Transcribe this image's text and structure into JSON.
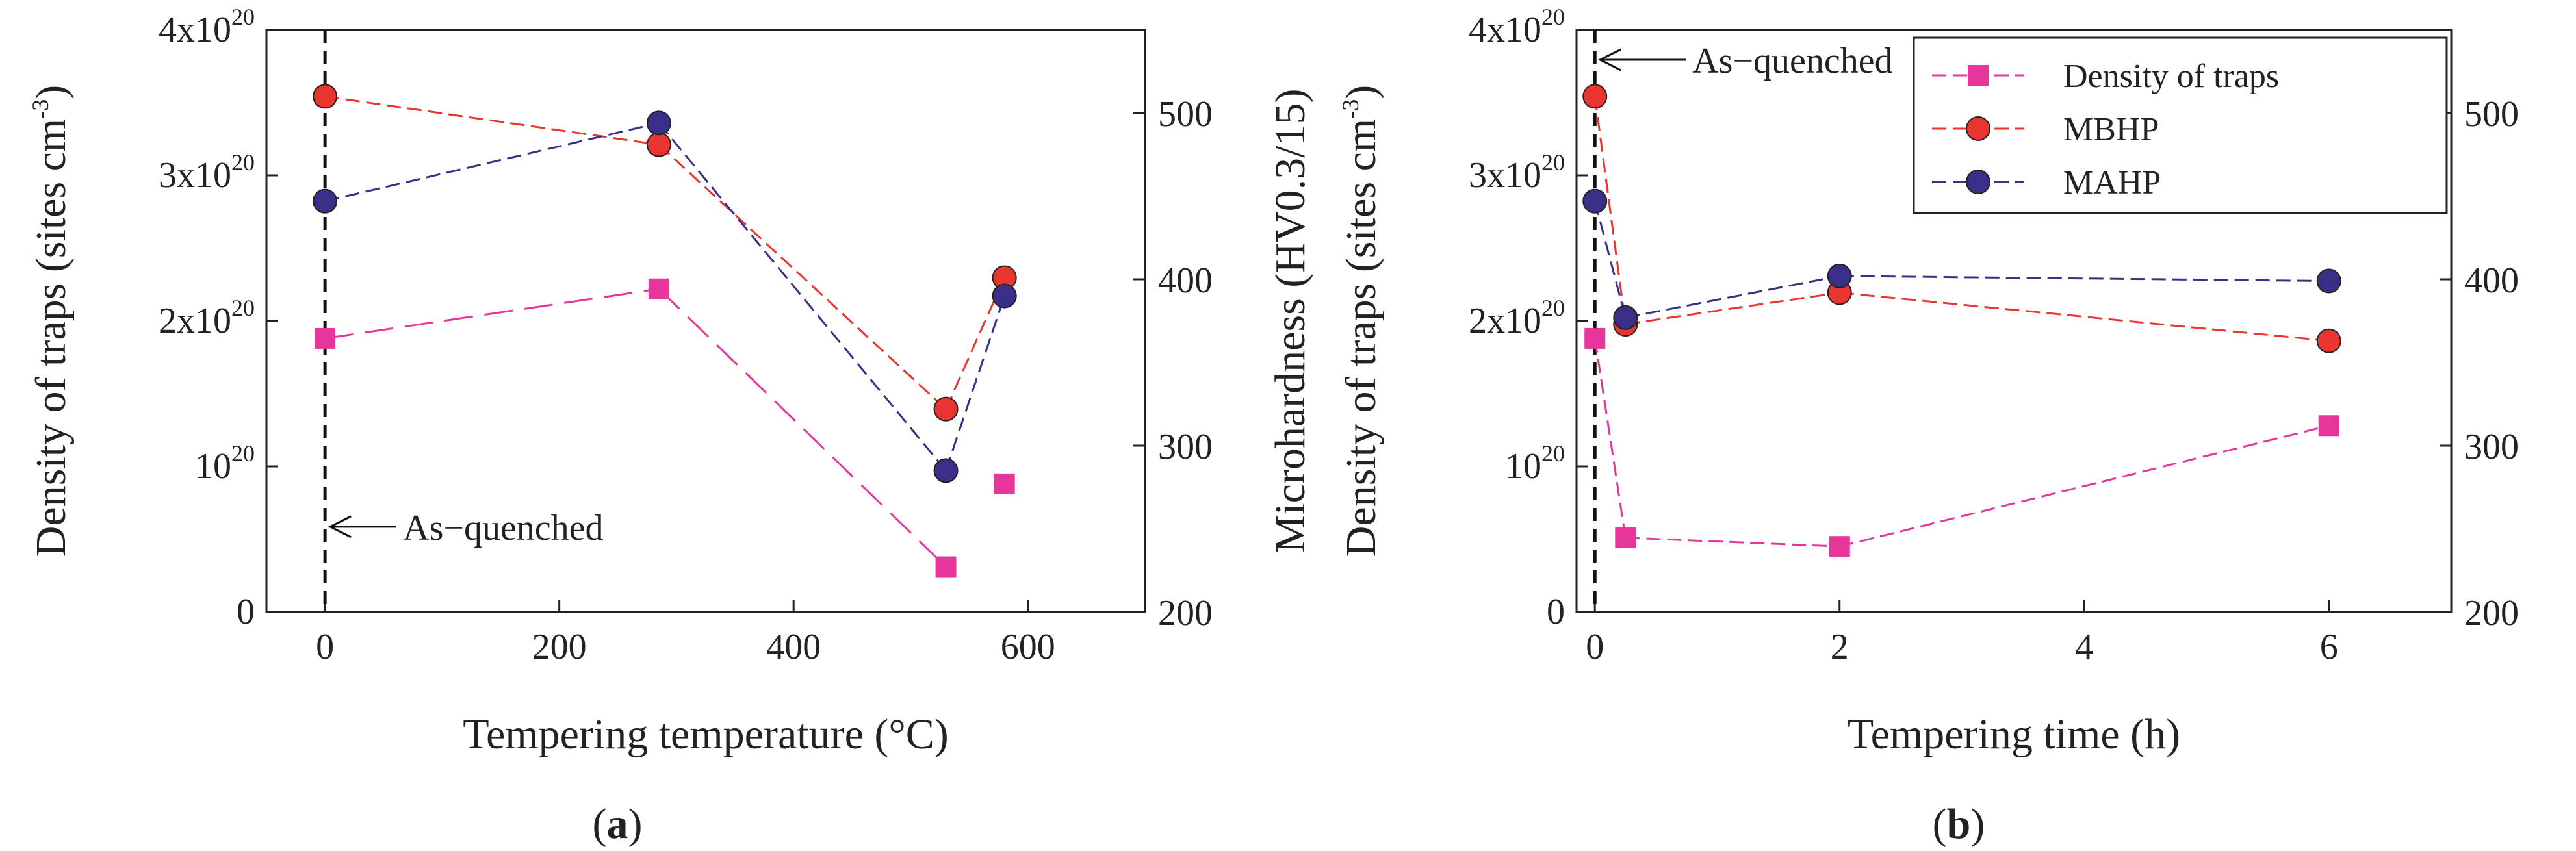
{
  "chart_data": [
    {
      "type": "line",
      "panel_label": "a",
      "xlabel": "Tempering temperature (°C)",
      "ylabel": "Density of traps (sites cm",
      "ylabel_sup": "-3",
      "ylabel_close": ")",
      "y2label": "Microhardness (HV0.3/15)",
      "xlim": [
        -50,
        700
      ],
      "xticks": [
        "0",
        "200",
        "400",
        "600"
      ],
      "xtick_values": [
        0,
        200,
        400,
        600
      ],
      "ylim": [
        0,
        4e+20
      ],
      "yticks": [
        {
          "base": "0",
          "sup": ""
        },
        {
          "base": "10",
          "sup": "20"
        },
        {
          "base": "2x10",
          "sup": "20"
        },
        {
          "base": "3x10",
          "sup": "20"
        },
        {
          "base": "4x10",
          "sup": "20"
        }
      ],
      "ytick_values": [
        0,
        1e+20,
        2e+20,
        3e+20,
        4e+20
      ],
      "y2lim": [
        200,
        550
      ],
      "y2ticks": [
        "200",
        "300",
        "400",
        "500"
      ],
      "y2tick_values": [
        200,
        300,
        400,
        500
      ],
      "vline_x": 0,
      "annotation": "As−quenched",
      "series": [
        {
          "name": "Density of traps",
          "axis": "left",
          "color": "#e6369b",
          "marker": "square",
          "dash": "long",
          "x": [
            0,
            285,
            530,
            580
          ],
          "y": [
            1.88e+20,
            2.22e+20,
            3.1e+19,
            8.8e+19
          ],
          "segments": [
            [
              0,
              1
            ],
            [
              1,
              2
            ]
          ]
        },
        {
          "name": "MBHP",
          "axis": "right",
          "color": "#e8352f",
          "marker": "circle",
          "dash": "short",
          "x": [
            0,
            285,
            530,
            580
          ],
          "y": [
            510,
            481,
            322,
            401
          ],
          "segments": [
            [
              0,
              1
            ],
            [
              1,
              2
            ],
            [
              2,
              3
            ]
          ]
        },
        {
          "name": "MAHP",
          "axis": "right",
          "color": "#3a2f86",
          "marker": "circle",
          "dash": "short",
          "x": [
            0,
            285,
            530,
            580
          ],
          "y": [
            447,
            494,
            285,
            390
          ],
          "segments": [
            [
              0,
              1
            ],
            [
              1,
              2
            ],
            [
              2,
              3
            ]
          ]
        }
      ]
    },
    {
      "type": "line",
      "panel_label": "b",
      "xlabel": "Tempering time (h)",
      "ylabel": "Density of traps (sites cm",
      "ylabel_sup": "-3",
      "ylabel_close": ")",
      "y2label": "Microhardness (HV0.3/15)",
      "xlim": [
        -0.15,
        7
      ],
      "xticks": [
        "0",
        "2",
        "4",
        "6"
      ],
      "xtick_values": [
        0,
        2,
        4,
        6
      ],
      "ylim": [
        0,
        4e+20
      ],
      "yticks": [
        {
          "base": "0",
          "sup": ""
        },
        {
          "base": "10",
          "sup": "20"
        },
        {
          "base": "2x10",
          "sup": "20"
        },
        {
          "base": "3x10",
          "sup": "20"
        },
        {
          "base": "4x10",
          "sup": "20"
        }
      ],
      "ytick_values": [
        0,
        1e+20,
        2e+20,
        3e+20,
        4e+20
      ],
      "y2lim": [
        200,
        550
      ],
      "y2ticks": [
        "200",
        "300",
        "400",
        "500"
      ],
      "y2tick_values": [
        200,
        300,
        400,
        500
      ],
      "vline_x": 0,
      "annotation": "As−quenched",
      "legend": [
        "Density of traps",
        "MBHP",
        "MAHP"
      ],
      "series": [
        {
          "name": "Density of traps",
          "axis": "left",
          "color": "#e6369b",
          "marker": "square",
          "dash": "short",
          "x": [
            0,
            0.25,
            2,
            6
          ],
          "y": [
            1.88e+20,
            5.1e+19,
            4.5e+19,
            1.28e+20
          ],
          "segments": [
            [
              0,
              1
            ],
            [
              1,
              2
            ],
            [
              2,
              3
            ]
          ]
        },
        {
          "name": "MBHP",
          "axis": "right",
          "color": "#e8352f",
          "marker": "circle",
          "dash": "short",
          "x": [
            0,
            0.25,
            2,
            6
          ],
          "y": [
            510,
            373,
            392,
            363
          ],
          "segments": [
            [
              0,
              1
            ],
            [
              1,
              2
            ],
            [
              2,
              3
            ]
          ]
        },
        {
          "name": "MAHP",
          "axis": "right",
          "color": "#3a2f86",
          "marker": "circle",
          "dash": "short",
          "x": [
            0,
            0.25,
            2,
            6
          ],
          "y": [
            447,
            377,
            402,
            399
          ],
          "segments": [
            [
              0,
              1
            ],
            [
              1,
              2
            ],
            [
              2,
              3
            ]
          ]
        }
      ]
    }
  ]
}
